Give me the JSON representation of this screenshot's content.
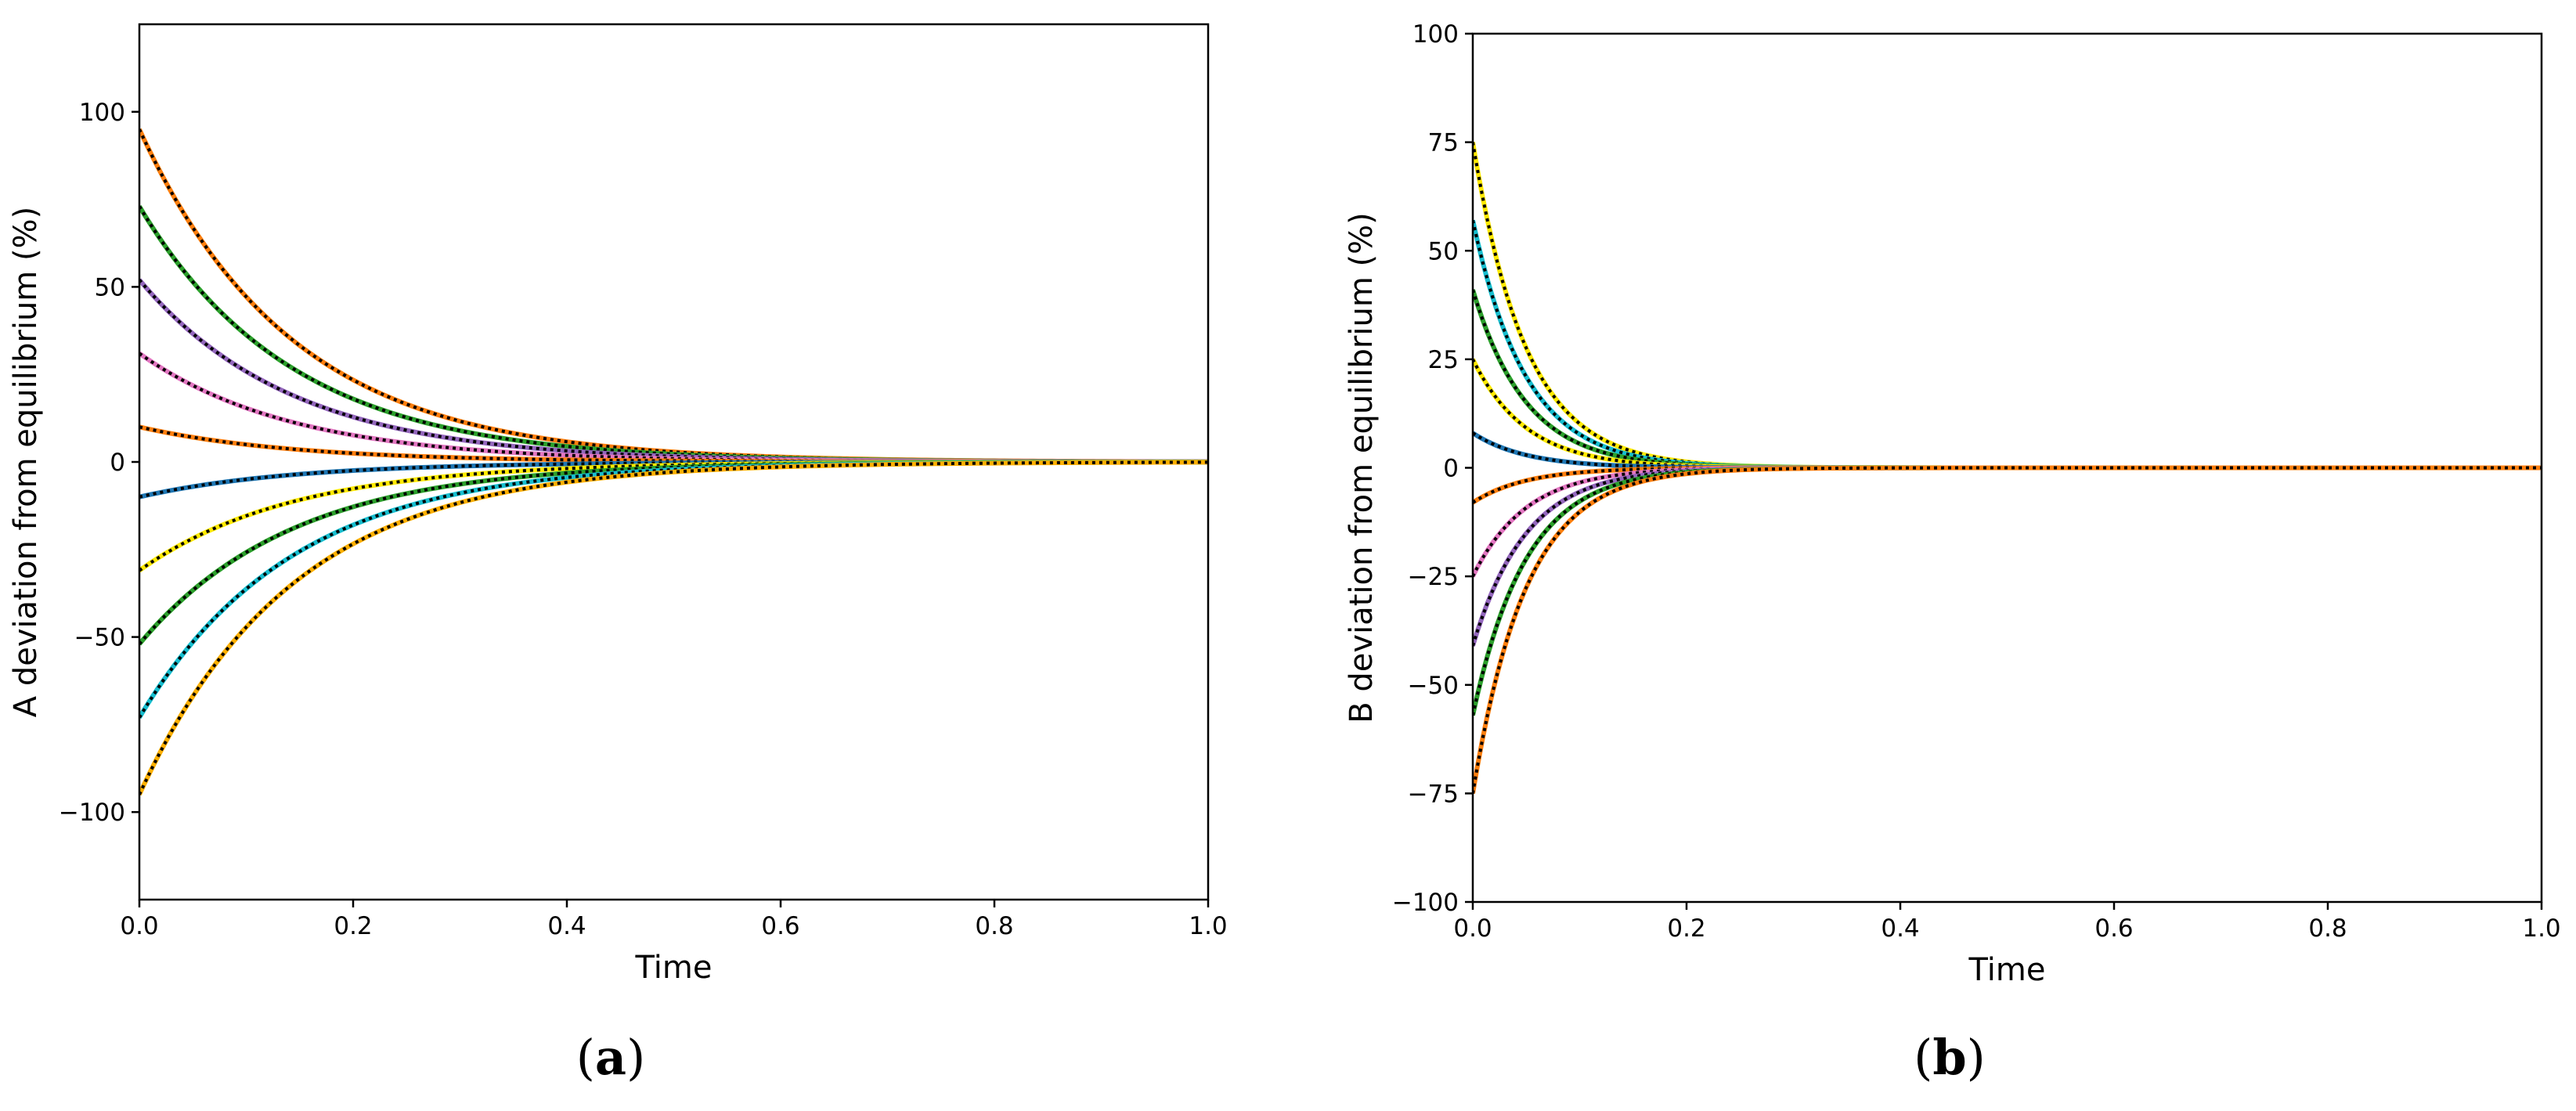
{
  "chart_data": [
    {
      "type": "line",
      "panel_label": "a",
      "xlabel": "Time",
      "ylabel": "A deviation from equilibrium (%)",
      "xlim": [
        0,
        1
      ],
      "ylim": [
        -125,
        125
      ],
      "xticks": [
        "0.0",
        "0.2",
        "0.4",
        "0.6",
        "0.8",
        "1.0"
      ],
      "yticks": [
        "−100",
        "−50",
        "0",
        "50",
        "100"
      ],
      "ytick_values": [
        -100,
        -50,
        0,
        50,
        100
      ],
      "xtick_values": [
        0,
        0.2,
        0.4,
        0.6,
        0.8,
        1.0
      ],
      "grid": false,
      "decay_rate": 7,
      "overlay": "black dotted line on every series",
      "series": [
        {
          "y0": 95,
          "color": "#ff7f0e"
        },
        {
          "y0": 73,
          "color": "#2ca02c"
        },
        {
          "y0": 52,
          "color": "#9467bd"
        },
        {
          "y0": 31,
          "color": "#e377c2"
        },
        {
          "y0": 10,
          "color": "#ff7f0e"
        },
        {
          "y0": -10,
          "color": "#1f77b4"
        },
        {
          "y0": -31,
          "color": "#ffea00"
        },
        {
          "y0": -52,
          "color": "#2ca02c"
        },
        {
          "y0": -73,
          "color": "#17becf"
        },
        {
          "y0": -95,
          "color": "#ffb000"
        }
      ]
    },
    {
      "type": "line",
      "panel_label": "b",
      "xlabel": "Time",
      "ylabel": "B deviation from equilibrium (%)",
      "xlim": [
        0,
        1
      ],
      "ylim": [
        -100,
        100
      ],
      "xticks": [
        "0.0",
        "0.2",
        "0.4",
        "0.6",
        "0.8",
        "1.0"
      ],
      "yticks": [
        "−100",
        "−75",
        "−50",
        "−25",
        "0",
        "25",
        "50",
        "75",
        "100"
      ],
      "ytick_values": [
        -100,
        -75,
        -50,
        -25,
        0,
        25,
        50,
        75,
        100
      ],
      "xtick_values": [
        0,
        0.2,
        0.4,
        0.6,
        0.8,
        1.0
      ],
      "grid": false,
      "decay_rate": 20,
      "overlay": "black dotted line on every series",
      "series": [
        {
          "y0": 75,
          "color": "#ffea00"
        },
        {
          "y0": 57,
          "color": "#17becf"
        },
        {
          "y0": 41,
          "color": "#2ca02c"
        },
        {
          "y0": 25,
          "color": "#ffea00"
        },
        {
          "y0": 8,
          "color": "#1f77b4"
        },
        {
          "y0": -8,
          "color": "#ff7f0e"
        },
        {
          "y0": -25,
          "color": "#e377c2"
        },
        {
          "y0": -41,
          "color": "#9467bd"
        },
        {
          "y0": -57,
          "color": "#2ca02c"
        },
        {
          "y0": -75,
          "color": "#ff7f0e"
        }
      ]
    }
  ]
}
